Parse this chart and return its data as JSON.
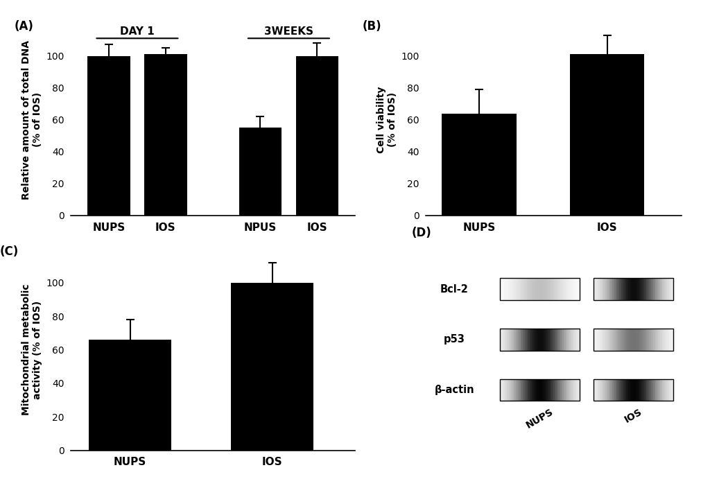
{
  "panel_A": {
    "label": "(A)",
    "groups": [
      "DAY 1",
      "3WEEKS"
    ],
    "categories": [
      [
        "NUPS",
        "IOS"
      ],
      [
        "NPUS",
        "IOS"
      ]
    ],
    "values": [
      [
        100,
        101
      ],
      [
        55,
        100
      ]
    ],
    "errors": [
      [
        7,
        4
      ],
      [
        7,
        8
      ]
    ],
    "significant": [
      [
        false,
        false
      ],
      [
        true,
        false
      ]
    ],
    "ylabel": "Relative amount of total DNA\n(% of IOS)",
    "ylim": [
      0,
      120
    ],
    "yticks": [
      0,
      20,
      40,
      60,
      80,
      100
    ]
  },
  "panel_B": {
    "label": "(B)",
    "categories": [
      "NUPS",
      "IOS"
    ],
    "values": [
      64,
      101
    ],
    "errors": [
      15,
      12
    ],
    "significant": [
      true,
      false
    ],
    "ylabel": "Cell viability\n(% of IOS)",
    "ylim": [
      0,
      120
    ],
    "yticks": [
      0,
      20,
      40,
      60,
      80,
      100
    ]
  },
  "panel_C": {
    "label": "(C)",
    "categories": [
      "NUPS",
      "IOS"
    ],
    "values": [
      66,
      100
    ],
    "errors": [
      12,
      12
    ],
    "significant": [
      true,
      false
    ],
    "ylabel": "Mitochondrial metabolic\nactivity (% of IOS)",
    "ylim": [
      0,
      120
    ],
    "yticks": [
      0,
      20,
      40,
      60,
      80,
      100
    ]
  },
  "panel_D": {
    "label": "(D)",
    "bands": [
      "Bcl-2",
      "p53",
      "β-actin"
    ],
    "categories": [
      "NUPS",
      "IOS"
    ],
    "bcl2_brightness": [
      0.25,
      0.95
    ],
    "p53_brightness": [
      0.95,
      0.55
    ],
    "bactin_brightness": [
      0.98,
      0.98
    ]
  },
  "bar_color": "#000000",
  "bg_color": "#ffffff",
  "tick_fontsize": 10,
  "label_fontsize": 10,
  "panel_label_fontsize": 12
}
